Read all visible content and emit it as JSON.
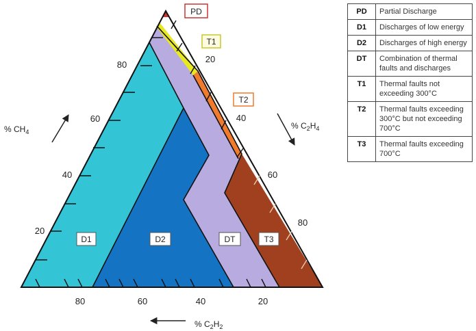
{
  "zones": {
    "pd": {
      "code": "PD",
      "color": "#cc3333"
    },
    "t1": {
      "code": "T1",
      "color": "#e8e820"
    },
    "t2": {
      "code": "T2",
      "color": "#f07b2c"
    },
    "d1": {
      "code": "D1",
      "color": "#33c4d6"
    },
    "d2": {
      "code": "D2",
      "color": "#1473c2"
    },
    "dt": {
      "code": "DT",
      "color": "#b7abe0"
    },
    "t3": {
      "code": "T3",
      "color": "#a0401f"
    }
  },
  "axes": {
    "ch4": {
      "label": "% CH",
      "sub": "4",
      "ticks": [
        "80",
        "60",
        "40",
        "20"
      ]
    },
    "c2h4": {
      "label": "% C",
      "sub1": "2",
      "mid": "H",
      "sub2": "4",
      "ticks": [
        "20",
        "40",
        "60",
        "80"
      ]
    },
    "c2h2": {
      "label": "% C",
      "sub1": "2",
      "mid": "H",
      "sub2": "2",
      "ticks": [
        "80",
        "60",
        "40",
        "20"
      ]
    }
  },
  "legend": [
    {
      "code": "PD",
      "desc": "Partial Discharge"
    },
    {
      "code": "D1",
      "desc": "Discharges of low energy"
    },
    {
      "code": "D2",
      "desc": "Discharges of high energy"
    },
    {
      "code": "DT",
      "desc": "Combination of thermal faults and discharges"
    },
    {
      "code": "T1",
      "desc": "Thermal faults not exceeding 300°C"
    },
    {
      "code": "T2",
      "desc": "Thermal faults exceeding 300°C but not exceeding 700°C"
    },
    {
      "code": "T3",
      "desc": "Thermal faults exceeding 700°C"
    }
  ]
}
